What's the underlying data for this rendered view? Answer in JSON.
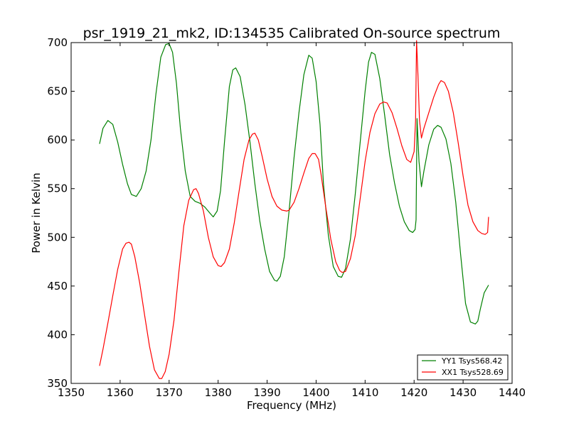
{
  "chart_data": {
    "type": "line",
    "title": "psr_1919_21_mk2, ID:134535 Calibrated On-source spectrum",
    "xlabel": "Frequency (MHz)",
    "ylabel": "Power in Kelvin",
    "xlim": [
      1350,
      1440
    ],
    "ylim": [
      350,
      700
    ],
    "xticks": [
      1350,
      1360,
      1370,
      1380,
      1390,
      1400,
      1410,
      1420,
      1430,
      1440
    ],
    "yticks": [
      350,
      400,
      450,
      500,
      550,
      600,
      650,
      700
    ],
    "grid": false,
    "legend_position": "lower-right",
    "series": [
      {
        "name": "YY1 Tsys568.42",
        "color": "#008000",
        "x": [
          1355.8,
          1356.5,
          1357.5,
          1358.5,
          1359.5,
          1360.5,
          1361.5,
          1362.3,
          1363.3,
          1364.3,
          1365.3,
          1366.3,
          1367.3,
          1368.3,
          1369.3,
          1370.0,
          1370.7,
          1371.5,
          1372.3,
          1373.3,
          1374.3,
          1375.3,
          1376.3,
          1377.3,
          1378.3,
          1379.0,
          1379.8,
          1380.5,
          1381.3,
          1382.3,
          1383.0,
          1383.6,
          1384.5,
          1385.5,
          1386.5,
          1387.5,
          1388.5,
          1389.5,
          1390.5,
          1391.5,
          1392.0,
          1392.7,
          1393.5,
          1394.5,
          1395.5,
          1396.5,
          1397.5,
          1398.5,
          1399.2,
          1400.0,
          1400.8,
          1401.5,
          1402.5,
          1403.5,
          1404.5,
          1405.2,
          1406.0,
          1407.0,
          1408.0,
          1409.0,
          1410.0,
          1410.7,
          1411.3,
          1412.0,
          1413.0,
          1414.0,
          1415.0,
          1416.0,
          1417.0,
          1418.0,
          1419.0,
          1419.7,
          1420.2,
          1420.4,
          1420.6,
          1421.0,
          1421.5,
          1422.0,
          1423.0,
          1424.0,
          1424.8,
          1425.5,
          1426.5,
          1427.5,
          1428.5,
          1429.5,
          1430.5,
          1431.5,
          1432.5,
          1433.0,
          1433.5,
          1434.3,
          1435.2
        ],
        "y": [
          596,
          612,
          620,
          616,
          598,
          575,
          555,
          544,
          542,
          550,
          568,
          600,
          647,
          685,
          698,
          699,
          690,
          658,
          612,
          568,
          542,
          537,
          535,
          531,
          525,
          521,
          527,
          548,
          598,
          655,
          672,
          674,
          665,
          636,
          598,
          555,
          517,
          488,
          465,
          456,
          455,
          460,
          480,
          528,
          582,
          628,
          667,
          687,
          684,
          660,
          616,
          555,
          502,
          470,
          460,
          459,
          468,
          498,
          545,
          598,
          650,
          680,
          690,
          688,
          663,
          625,
          585,
          556,
          532,
          516,
          507,
          505,
          508,
          518,
          622,
          578,
          552,
          568,
          595,
          611,
          615,
          613,
          601,
          576,
          536,
          482,
          432,
          413,
          411,
          414,
          426,
          443,
          451
        ]
      },
      {
        "name": "XX1 Tsys528.69",
        "color": "#ff0000",
        "x": [
          1355.8,
          1356.5,
          1357.5,
          1358.5,
          1359.5,
          1360.5,
          1361.2,
          1361.8,
          1362.3,
          1363.0,
          1364.0,
          1365.0,
          1366.0,
          1367.0,
          1368.0,
          1368.5,
          1369.2,
          1370.0,
          1371.0,
          1372.0,
          1373.0,
          1374.0,
          1375.0,
          1375.5,
          1376.0,
          1377.0,
          1378.0,
          1379.0,
          1380.0,
          1380.6,
          1381.3,
          1382.3,
          1383.3,
          1384.3,
          1385.3,
          1386.3,
          1387.0,
          1387.5,
          1388.2,
          1389.0,
          1390.0,
          1391.0,
          1392.0,
          1393.0,
          1394.0,
          1394.5,
          1395.5,
          1396.5,
          1397.5,
          1398.5,
          1399.2,
          1399.8,
          1400.5,
          1401.0,
          1402.0,
          1403.0,
          1404.0,
          1404.8,
          1405.3,
          1406.0,
          1407.0,
          1408.0,
          1409.0,
          1410.0,
          1411.0,
          1412.0,
          1413.0,
          1413.8,
          1414.5,
          1415.5,
          1416.5,
          1417.5,
          1418.5,
          1419.3,
          1420.0,
          1420.3,
          1420.5,
          1420.8,
          1421.1,
          1421.5,
          1422.0,
          1423.0,
          1424.0,
          1425.0,
          1425.5,
          1426.2,
          1427.0,
          1428.0,
          1429.0,
          1430.0,
          1431.0,
          1432.0,
          1433.0,
          1433.8,
          1434.5,
          1435.0,
          1435.2
        ],
        "y": [
          368,
          385,
          412,
          440,
          467,
          488,
          494,
          495,
          493,
          480,
          453,
          420,
          388,
          364,
          355,
          355,
          362,
          380,
          415,
          465,
          512,
          538,
          549,
          550,
          545,
          527,
          500,
          480,
          471,
          470,
          474,
          488,
          515,
          548,
          580,
          600,
          606,
          607,
          600,
          583,
          560,
          542,
          532,
          528,
          527,
          528,
          536,
          550,
          566,
          581,
          586,
          586,
          580,
          565,
          530,
          498,
          475,
          466,
          464,
          465,
          478,
          502,
          540,
          578,
          608,
          627,
          637,
          639,
          638,
          628,
          612,
          594,
          580,
          577,
          588,
          620,
          702,
          665,
          620,
          602,
          612,
          628,
          644,
          657,
          661,
          659,
          650,
          628,
          597,
          563,
          533,
          516,
          507,
          504,
          503,
          505,
          521
        ]
      }
    ]
  }
}
